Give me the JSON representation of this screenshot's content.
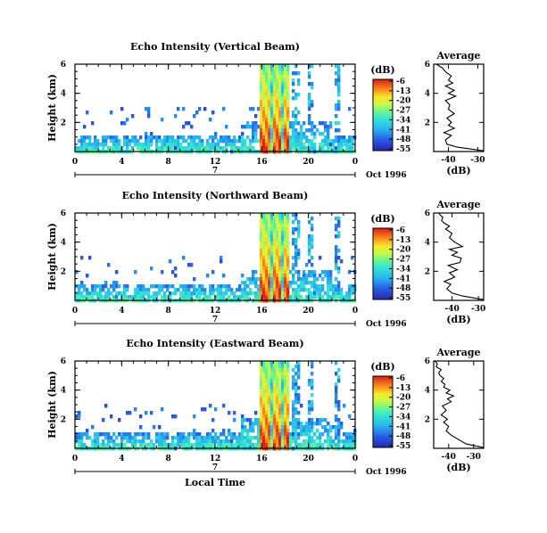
{
  "chart_data": [
    {
      "type": "heatmap",
      "title": "Echo Intensity (Vertical Beam)",
      "ylabel": "Height (km)",
      "xlabel": "",
      "x_ticks": [
        "0",
        "4",
        "8",
        "12",
        "16",
        "20",
        "0"
      ],
      "y_ticks": [
        "2",
        "4",
        "6"
      ],
      "xlim": [
        0,
        24
      ],
      "ylim": [
        0,
        6
      ],
      "day_label": "7",
      "date_label": "Oct 1996",
      "colorbar": {
        "unit": "(dB)",
        "ticks": [
          "-6",
          "-13",
          "-20",
          "-27",
          "-34",
          "-41",
          "-48",
          "-55"
        ]
      },
      "profile": {
        "title": "Average",
        "xlabel": "(dB)",
        "x_ticks": [
          "-40",
          "-30"
        ],
        "y_ticks": [
          "2",
          "4",
          "6"
        ],
        "xlim": [
          -45,
          -28
        ],
        "ylim": [
          0,
          6
        ],
        "x": [
          -28,
          -37,
          -40.5,
          -41,
          -39,
          -41.5,
          -38,
          -40,
          -39,
          -40.5,
          -38,
          -40,
          -39.5,
          -41,
          -37.5,
          -40,
          -38,
          -41,
          -38.5,
          -40,
          -39,
          -40.5,
          -41.5,
          -42,
          -43,
          -44
        ],
        "y": [
          0.05,
          0.3,
          0.5,
          0.8,
          1.1,
          1.3,
          1.6,
          1.8,
          2.0,
          2.3,
          2.6,
          2.9,
          3.2,
          3.5,
          3.8,
          4.0,
          4.2,
          4.5,
          4.7,
          4.9,
          5.2,
          5.4,
          5.6,
          5.75,
          5.85,
          6.0
        ]
      }
    },
    {
      "type": "heatmap",
      "title": "Echo Intensity (Northward Beam)",
      "ylabel": "Height (km)",
      "xlabel": "",
      "x_ticks": [
        "0",
        "4",
        "8",
        "12",
        "16",
        "20",
        "0"
      ],
      "y_ticks": [
        "2",
        "4",
        "6"
      ],
      "xlim": [
        0,
        24
      ],
      "ylim": [
        0,
        6
      ],
      "day_label": "7",
      "date_label": "Oct 1996",
      "colorbar": {
        "unit": "(dB)",
        "ticks": [
          "-6",
          "-13",
          "-20",
          "-27",
          "-34",
          "-41",
          "-48",
          "-55"
        ]
      },
      "profile": {
        "title": "Average",
        "xlabel": "(dB)",
        "x_ticks": [
          "-40",
          "-30"
        ],
        "y_ticks": [
          "2",
          "4",
          "6"
        ],
        "xlim": [
          -47,
          -28
        ],
        "ylim": [
          0,
          6
        ],
        "x": [
          -28,
          -36,
          -40,
          -42,
          -40.5,
          -43,
          -39,
          -41,
          -38,
          -41.5,
          -37,
          -36.5,
          -40,
          -38,
          -41,
          -36,
          -39,
          -41,
          -40,
          -42.5,
          -41,
          -43,
          -44,
          -43.5,
          -44.5,
          -45
        ],
        "y": [
          0.05,
          0.3,
          0.5,
          0.8,
          1.1,
          1.3,
          1.6,
          1.9,
          2.1,
          2.4,
          2.6,
          2.9,
          3.1,
          3.3,
          3.5,
          3.7,
          4.0,
          4.3,
          4.6,
          4.9,
          5.1,
          5.3,
          5.5,
          5.7,
          5.85,
          6.0
        ]
      }
    },
    {
      "type": "heatmap",
      "title": "Echo Intensity (Eastward Beam)",
      "ylabel": "Height (km)",
      "xlabel": "Local Time",
      "x_ticks": [
        "0",
        "4",
        "8",
        "12",
        "16",
        "20",
        "0"
      ],
      "y_ticks": [
        "2",
        "4",
        "6"
      ],
      "xlim": [
        0,
        24
      ],
      "ylim": [
        0,
        6
      ],
      "day_label": "7",
      "date_label": "Oct 1996",
      "colorbar": {
        "unit": "(dB)",
        "ticks": [
          "-6",
          "-13",
          "-20",
          "-27",
          "-34",
          "-41",
          "-48",
          "-55"
        ]
      },
      "profile": {
        "title": "Average",
        "xlabel": "(dB)",
        "x_ticks": [
          "-40",
          "-30"
        ],
        "y_ticks": [
          "2",
          "4",
          "6"
        ],
        "xlim": [
          -46,
          -26
        ],
        "ylim": [
          0,
          6
        ],
        "x": [
          -26,
          -33,
          -36,
          -39,
          -41,
          -40,
          -42,
          -40.5,
          -43,
          -41,
          -42.5,
          -39,
          -40.5,
          -38,
          -41,
          -39.5,
          -42,
          -41.5,
          -43,
          -42,
          -43.5,
          -44,
          -43,
          -45,
          -44.5,
          -45.5
        ],
        "y": [
          0.05,
          0.3,
          0.6,
          0.9,
          1.2,
          1.5,
          1.8,
          2.0,
          2.3,
          2.6,
          2.9,
          3.2,
          3.4,
          3.6,
          3.8,
          4.0,
          4.2,
          4.4,
          4.6,
          4.8,
          5.0,
          5.2,
          5.4,
          5.6,
          5.8,
          6.0
        ]
      }
    }
  ]
}
